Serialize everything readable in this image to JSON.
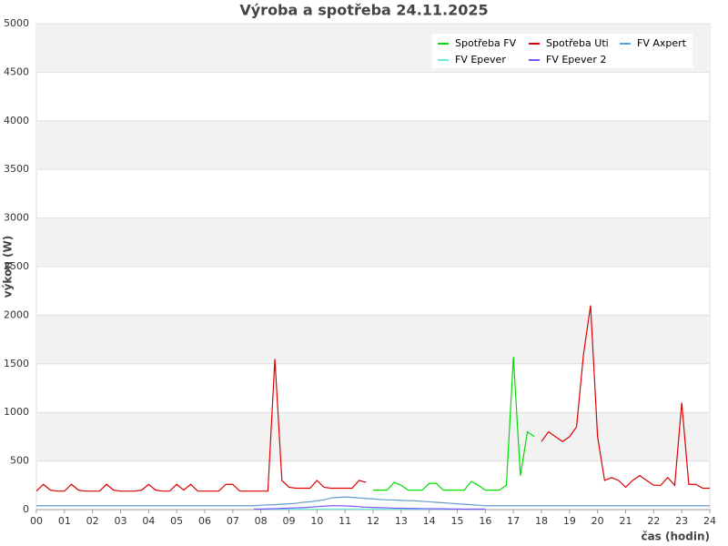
{
  "chart_data": {
    "type": "line",
    "title": "Výroba a spotřeba 24.11.2025",
    "x_label": "čas (hodin)",
    "y_label": "výkon (W)",
    "x": [
      0,
      0.25,
      0.5,
      0.75,
      1,
      1.25,
      1.5,
      1.75,
      2,
      2.25,
      2.5,
      2.75,
      3,
      3.25,
      3.5,
      3.75,
      4,
      4.25,
      4.5,
      4.75,
      5,
      5.25,
      5.5,
      5.75,
      6,
      6.25,
      6.5,
      6.75,
      7,
      7.25,
      7.5,
      7.75,
      8,
      8.25,
      8.5,
      8.75,
      9,
      9.25,
      9.5,
      9.75,
      10,
      10.25,
      10.5,
      10.75,
      11,
      11.25,
      11.5,
      11.75,
      12,
      12.25,
      12.5,
      12.75,
      13,
      13.25,
      13.5,
      13.75,
      14,
      14.25,
      14.5,
      14.75,
      15,
      15.25,
      15.5,
      15.75,
      16,
      16.25,
      16.5,
      16.75,
      17,
      17.25,
      17.5,
      17.75,
      18,
      18.25,
      18.5,
      18.75,
      19,
      19.25,
      19.5,
      19.75,
      20,
      20.25,
      20.5,
      20.75,
      21,
      21.25,
      21.5,
      21.75,
      22,
      22.25,
      22.5,
      22.75,
      23,
      23.25,
      23.5,
      23.75,
      24
    ],
    "series": [
      {
        "name": "Spotřeba FV",
        "color": "#00dd00",
        "values": [
          null,
          null,
          null,
          null,
          null,
          null,
          null,
          null,
          null,
          null,
          null,
          null,
          null,
          null,
          null,
          null,
          null,
          null,
          null,
          null,
          null,
          null,
          null,
          null,
          null,
          null,
          null,
          null,
          null,
          null,
          null,
          null,
          null,
          null,
          null,
          null,
          null,
          null,
          null,
          null,
          null,
          null,
          null,
          null,
          null,
          null,
          null,
          null,
          200,
          200,
          200,
          280,
          250,
          200,
          200,
          200,
          270,
          270,
          200,
          200,
          200,
          200,
          290,
          250,
          200,
          200,
          200,
          250,
          1570,
          350,
          800,
          750,
          null,
          null,
          null,
          null,
          null,
          null,
          null,
          null,
          null,
          null,
          null,
          null,
          null,
          null,
          null,
          null,
          null,
          null,
          null,
          null,
          null,
          null,
          null,
          null,
          null
        ]
      },
      {
        "name": "Spotřeba Uti",
        "color": "#dd0000",
        "values": [
          190,
          260,
          200,
          190,
          190,
          260,
          200,
          190,
          190,
          190,
          260,
          200,
          190,
          190,
          190,
          200,
          260,
          200,
          190,
          190,
          260,
          200,
          260,
          190,
          190,
          190,
          190,
          260,
          260,
          190,
          190,
          190,
          190,
          190,
          1550,
          300,
          230,
          220,
          220,
          220,
          300,
          230,
          220,
          220,
          220,
          220,
          300,
          280,
          null,
          null,
          null,
          null,
          null,
          null,
          null,
          null,
          null,
          null,
          null,
          null,
          null,
          null,
          null,
          null,
          null,
          null,
          null,
          null,
          null,
          null,
          null,
          null,
          700,
          800,
          750,
          700,
          750,
          850,
          1600,
          2100,
          750,
          300,
          330,
          300,
          230,
          300,
          350,
          300,
          250,
          250,
          330,
          250,
          1100,
          260,
          260,
          220,
          220
        ]
      },
      {
        "name": "FV Axpert",
        "color": "#6699cc",
        "values": [
          40,
          40,
          40,
          40,
          40,
          40,
          40,
          40,
          40,
          40,
          40,
          40,
          40,
          40,
          40,
          40,
          40,
          40,
          40,
          40,
          40,
          40,
          40,
          40,
          40,
          40,
          40,
          40,
          40,
          40,
          40,
          40,
          45,
          48,
          50,
          55,
          60,
          65,
          75,
          80,
          90,
          100,
          120,
          125,
          130,
          125,
          120,
          115,
          110,
          105,
          100,
          98,
          95,
          92,
          90,
          85,
          80,
          75,
          70,
          65,
          60,
          55,
          50,
          45,
          40,
          40,
          40,
          40,
          40,
          40,
          40,
          40,
          40,
          40,
          40,
          40,
          40,
          40,
          40,
          40,
          40,
          40,
          40,
          40,
          40,
          40,
          40,
          40,
          40,
          40,
          40,
          40,
          40,
          40,
          40,
          40,
          40
        ]
      },
      {
        "name": "FV Epever",
        "color": "#66eedd",
        "values": [
          null,
          null,
          null,
          null,
          null,
          null,
          null,
          null,
          null,
          null,
          null,
          null,
          null,
          null,
          null,
          null,
          null,
          null,
          null,
          null,
          null,
          null,
          null,
          null,
          null,
          null,
          null,
          null,
          null,
          null,
          null,
          5,
          5,
          5,
          5,
          5,
          5,
          5,
          5,
          5,
          5,
          5,
          5,
          5,
          5,
          5,
          5,
          5,
          5,
          5,
          5,
          5,
          5,
          5,
          5,
          5,
          5,
          5,
          5,
          5,
          5,
          5,
          5,
          5,
          5,
          null,
          null,
          null,
          null,
          null,
          null,
          null,
          null,
          null,
          null,
          null,
          null,
          null,
          null,
          null,
          null,
          null,
          null,
          null,
          null,
          null,
          null,
          null,
          null,
          null,
          null,
          null,
          null,
          null,
          null,
          null,
          null
        ]
      },
      {
        "name": "FV Epever 2",
        "color": "#7755ff",
        "values": [
          null,
          null,
          null,
          null,
          null,
          null,
          null,
          null,
          null,
          null,
          null,
          null,
          null,
          null,
          null,
          null,
          null,
          null,
          null,
          null,
          null,
          null,
          null,
          null,
          null,
          null,
          null,
          null,
          null,
          null,
          null,
          5,
          5,
          8,
          10,
          12,
          15,
          18,
          20,
          25,
          30,
          35,
          40,
          40,
          38,
          35,
          30,
          25,
          22,
          20,
          18,
          15,
          14,
          12,
          12,
          10,
          10,
          8,
          8,
          6,
          6,
          5,
          5,
          5,
          5,
          null,
          null,
          null,
          null,
          null,
          null,
          null,
          null,
          null,
          null,
          null,
          null,
          null,
          null,
          null,
          null,
          null,
          null,
          null,
          null,
          null,
          null,
          null,
          null,
          null,
          null,
          null,
          null,
          null,
          null,
          null,
          null
        ]
      }
    ],
    "xlim": [
      0,
      24
    ],
    "xticks": [
      {
        "value": 0,
        "label": "00"
      },
      {
        "value": 1,
        "label": "01"
      },
      {
        "value": 2,
        "label": "02"
      },
      {
        "value": 3,
        "label": "03"
      },
      {
        "value": 4,
        "label": "04"
      },
      {
        "value": 5,
        "label": "05"
      },
      {
        "value": 6,
        "label": "06"
      },
      {
        "value": 7,
        "label": "07"
      },
      {
        "value": 8,
        "label": "08"
      },
      {
        "value": 9,
        "label": "09"
      },
      10,
      11,
      12,
      13,
      14,
      15,
      16,
      17,
      18,
      19,
      20,
      21,
      22,
      23,
      24
    ],
    "ylim": [
      0,
      5000
    ],
    "yticks": [
      0,
      500,
      1000,
      1500,
      2000,
      2500,
      3000,
      3500,
      4000,
      4500,
      5000
    ],
    "grid": true,
    "legend": "upper right"
  }
}
